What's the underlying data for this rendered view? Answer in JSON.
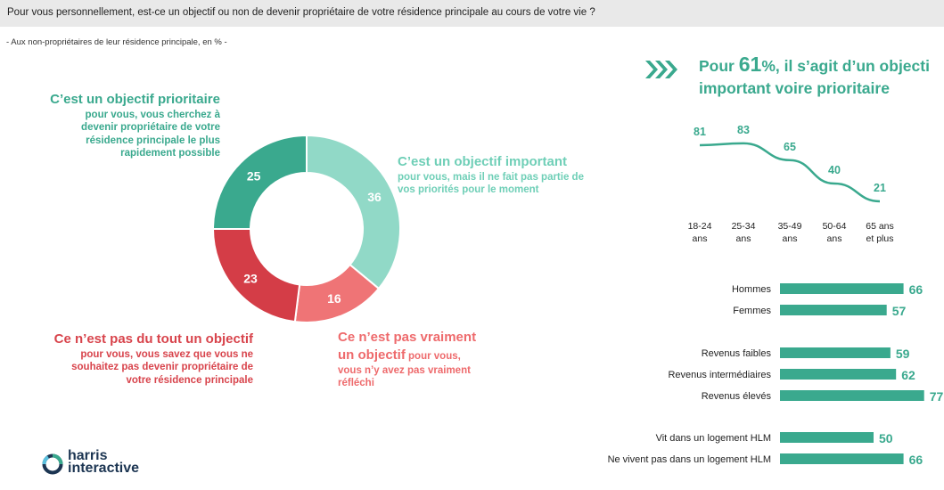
{
  "question": "Pour vous personnellement, est-ce un objectif ou non de devenir propriétaire de votre résidence principale au cours de votre vie ?",
  "base": "- Aux non-propriétaires de leur résidence principale, en % -",
  "colors": {
    "teal_dark": "#3aa98e",
    "teal_light": "#91d9c7",
    "pink": "#ef7476",
    "red": "#d43d47",
    "bar": "#3aa98e"
  },
  "labels": {
    "prioritaire": {
      "title": "C’est un objectif prioritaire",
      "desc": "pour vous, vous cherchez à devenir propriétaire de votre résidence principale le plus rapidement possible"
    },
    "important": {
      "title": "C’est un objectif important",
      "desc": "pour vous, mais il ne fait pas partie de vos priorités pour le moment"
    },
    "pas_vraiment": {
      "title_a": "Ce n’est pas vraiment",
      "title_b": "un objectif",
      "desc_a": " pour vous,",
      "desc_b": "vous n’y avez pas vraiment réfléchi"
    },
    "pas_du_tout": {
      "title": "Ce n’est pas du tout un objectif",
      "desc": "pour vous, vous savez que vous ne souhaitez pas devenir propriétaire de votre résidence principale"
    }
  },
  "headline": {
    "prefix": "Pour ",
    "pct": "61",
    "suffix": "%, il s’agit d’un objecti",
    "line2": "important voire prioritaire"
  },
  "logo": {
    "line1": "harris",
    "line2": "interactive"
  },
  "chart_data": [
    {
      "type": "pie",
      "donut": true,
      "categories": [
        "C’est un objectif important",
        "Ce n’est pas vraiment un objectif",
        "Ce n’est pas du tout un objectif",
        "C’est un objectif prioritaire"
      ],
      "values": [
        36,
        16,
        23,
        25
      ],
      "colors": [
        "#91d9c7",
        "#ef7476",
        "#d43d47",
        "#3aa98e"
      ]
    },
    {
      "type": "line",
      "categories": [
        [
          "18-24",
          "ans"
        ],
        [
          "25-34",
          "ans"
        ],
        [
          "35-49",
          "ans"
        ],
        [
          "50-64",
          "ans"
        ],
        [
          "65 ans",
          "et plus"
        ]
      ],
      "values": [
        81,
        83,
        65,
        40,
        21
      ]
    },
    {
      "type": "bar",
      "orientation": "horizontal",
      "groups": [
        {
          "items": [
            {
              "label": "Hommes",
              "value": 66
            },
            {
              "label": "Femmes",
              "value": 57
            }
          ]
        },
        {
          "items": [
            {
              "label": "Revenus faibles",
              "value": 59
            },
            {
              "label": "Revenus intermédiaires",
              "value": 62
            },
            {
              "label": "Revenus élevés",
              "value": 77
            }
          ]
        },
        {
          "items": [
            {
              "label": "Vit dans un logement HLM",
              "value": 50
            },
            {
              "label": "Ne vivent pas dans un logement HLM",
              "value": 66
            }
          ]
        }
      ]
    }
  ]
}
